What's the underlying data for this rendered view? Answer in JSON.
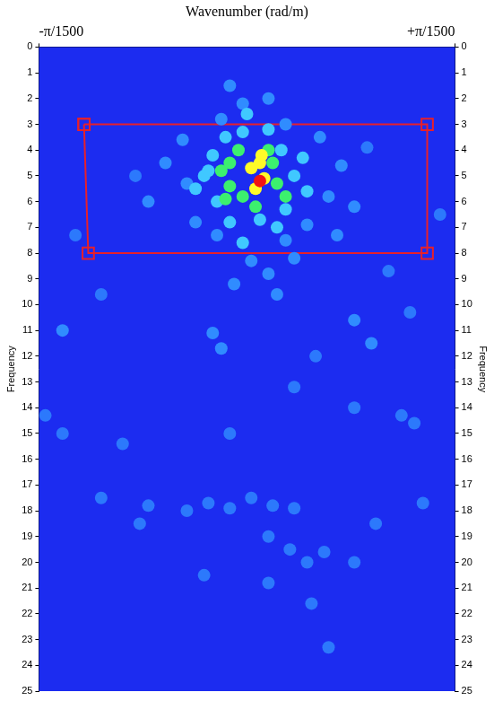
{
  "chart_data": {
    "type": "heatmap",
    "xlabel": "Wavenumber (rad/m)",
    "ylabel": "Frequency",
    "y2label": "Frequency",
    "xlim": [
      -0.0020944,
      0.0020944
    ],
    "xticks": [
      {
        "value": -0.0020944,
        "label": "-π/1500"
      },
      {
        "value": 0.0020944,
        "label": "+π/1500"
      }
    ],
    "ylim": [
      0,
      25
    ],
    "yticks": [
      0,
      1,
      2,
      3,
      4,
      5,
      6,
      7,
      8,
      9,
      10,
      11,
      12,
      13,
      14,
      15,
      16,
      17,
      18,
      19,
      20,
      21,
      22,
      23,
      24,
      25
    ],
    "y2lim": [
      0,
      25
    ],
    "y2ticks": [
      0,
      1,
      2,
      3,
      4,
      5,
      6,
      7,
      8,
      9,
      10,
      11,
      12,
      13,
      14,
      15,
      16,
      17,
      18,
      19,
      20,
      21,
      22,
      23,
      24,
      25
    ],
    "grid": false,
    "color_range": [
      0,
      1
    ],
    "cells": [
      [
        -0.00203,
        14.3,
        0.2
      ],
      [
        -0.001857,
        15.0,
        0.2
      ],
      [
        0.001555,
        14.3,
        0.2
      ],
      [
        0.00108,
        14.0,
        0.2
      ],
      [
        0.001684,
        14.6,
        0.2
      ],
      [
        0.000475,
        13.2,
        0.2
      ],
      [
        0.000691,
        12.0,
        0.2
      ],
      [
        -0.000993,
        17.8,
        0.2
      ],
      [
        -0.000605,
        18.0,
        0.2
      ],
      [
        -0.000389,
        17.7,
        0.2
      ],
      [
        -0.000173,
        17.9,
        0.2
      ],
      [
        4.3e-05,
        17.5,
        0.2
      ],
      [
        0.000259,
        17.8,
        0.2
      ],
      [
        0.000475,
        17.9,
        0.2
      ],
      [
        0.001771,
        17.7,
        0.2
      ],
      [
        0.000216,
        19.0,
        0.2
      ],
      [
        0.000432,
        19.5,
        0.2
      ],
      [
        0.000605,
        20.0,
        0.2
      ],
      [
        0.000777,
        19.6,
        0.2
      ],
      [
        0.00108,
        20.0,
        0.2
      ],
      [
        0.000216,
        20.8,
        0.2
      ],
      [
        -0.000432,
        20.5,
        0.2
      ],
      [
        0.000649,
        21.6,
        0.2
      ],
      [
        0.000821,
        23.3,
        0.2
      ],
      [
        -0.000173,
        15.0,
        0.2
      ],
      [
        0.001943,
        6.5,
        0.2
      ],
      [
        -0.001727,
        7.3,
        0.2
      ],
      [
        -0.001468,
        9.6,
        0.2
      ],
      [
        0.001425,
        8.7,
        0.2
      ],
      [
        0.001641,
        10.3,
        0.2
      ],
      [
        -0.001252,
        15.4,
        0.2
      ],
      [
        -0.001468,
        17.5,
        0.2
      ],
      [
        -0.00108,
        18.5,
        0.2
      ],
      [
        0.001296,
        18.5,
        0.2
      ],
      [
        -0.001123,
        5.0,
        0.2
      ],
      [
        0.001209,
        3.9,
        0.2
      ],
      [
        -0.000173,
        1.5,
        0.25
      ],
      [
        -4.3e-05,
        2.2,
        0.25
      ],
      [
        0.000216,
        2.0,
        0.25
      ],
      [
        -0.000259,
        2.8,
        0.25
      ],
      [
        0.000389,
        3.0,
        0.25
      ],
      [
        -0.000648,
        3.6,
        0.25
      ],
      [
        0.000734,
        3.5,
        0.25
      ],
      [
        -0.000821,
        4.5,
        0.25
      ],
      [
        0.00095,
        4.6,
        0.25
      ],
      [
        -0.000605,
        5.3,
        0.25
      ],
      [
        0.000821,
        5.8,
        0.25
      ],
      [
        -0.000993,
        6.0,
        0.25
      ],
      [
        0.00108,
        6.2,
        0.25
      ],
      [
        -0.000518,
        6.8,
        0.25
      ],
      [
        0.000605,
        6.9,
        0.25
      ],
      [
        -0.000302,
        7.3,
        0.25
      ],
      [
        0.000389,
        7.5,
        0.25
      ],
      [
        0.000907,
        7.3,
        0.25
      ],
      [
        4.3e-05,
        8.3,
        0.25
      ],
      [
        0.000216,
        8.8,
        0.25
      ],
      [
        0.000475,
        8.2,
        0.25
      ],
      [
        -0.00013,
        9.2,
        0.25
      ],
      [
        0.000302,
        9.6,
        0.25
      ],
      [
        -0.000345,
        11.1,
        0.25
      ],
      [
        -0.000259,
        11.7,
        0.25
      ],
      [
        -0.001857,
        11.0,
        0.25
      ],
      [
        0.00108,
        10.6,
        0.25
      ],
      [
        0.001252,
        11.5,
        0.25
      ],
      [
        -0.000216,
        3.5,
        0.45
      ],
      [
        -4.3e-05,
        3.3,
        0.45
      ],
      [
        0.000216,
        3.2,
        0.45
      ],
      [
        0.000345,
        4.0,
        0.45
      ],
      [
        -0.000345,
        4.2,
        0.45
      ],
      [
        -0.000432,
        5.0,
        0.45
      ],
      [
        0.000475,
        5.0,
        0.45
      ],
      [
        -0.000302,
        6.0,
        0.45
      ],
      [
        0.000389,
        6.3,
        0.45
      ],
      [
        -0.000173,
        6.8,
        0.45
      ],
      [
        0.00013,
        6.7,
        0.45
      ],
      [
        0.000302,
        7.0,
        0.45
      ],
      [
        -4.3e-05,
        7.6,
        0.45
      ],
      [
        0.0,
        2.6,
        0.45
      ],
      [
        0.000605,
        5.6,
        0.45
      ],
      [
        -0.000518,
        5.5,
        0.45
      ],
      [
        -0.000389,
        4.8,
        0.45
      ],
      [
        0.000562,
        4.3,
        0.45
      ],
      [
        -0.000259,
        4.8,
        0.65
      ],
      [
        -0.000173,
        4.5,
        0.65
      ],
      [
        -0.000173,
        5.4,
        0.65
      ],
      [
        -4.3e-05,
        5.8,
        0.65
      ],
      [
        -8.6e-05,
        4.0,
        0.65
      ],
      [
        0.000259,
        4.5,
        0.65
      ],
      [
        0.000389,
        5.8,
        0.65
      ],
      [
        0.000302,
        5.3,
        0.65
      ],
      [
        8.6e-05,
        6.2,
        0.65
      ],
      [
        -0.000216,
        5.9,
        0.65
      ],
      [
        0.000216,
        4.0,
        0.65
      ],
      [
        4.3e-05,
        4.7,
        0.85
      ],
      [
        0.00013,
        4.5,
        0.85
      ],
      [
        8.6e-05,
        5.5,
        0.85
      ],
      [
        0.000173,
        5.1,
        0.85
      ],
      [
        0.000147,
        4.2,
        0.85
      ],
      [
        0.00013,
        5.2,
        1.0
      ]
    ],
    "selection_box": [
      [
        -0.001641,
        3
      ],
      [
        0.001814,
        3
      ],
      [
        0.001814,
        8
      ],
      [
        -0.001598,
        8
      ]
    ]
  }
}
